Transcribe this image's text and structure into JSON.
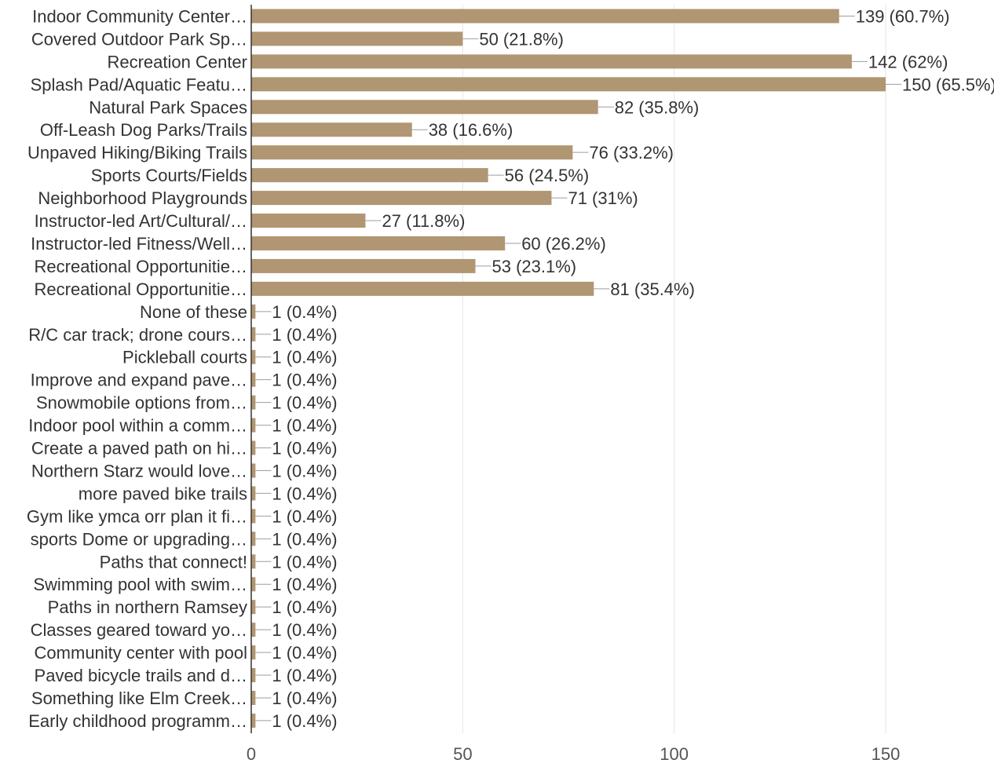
{
  "colors": {
    "bar": "#b09672",
    "axis": "#333333",
    "grid": "#e6e6e6",
    "leader": "#9e9e9e",
    "text": "#333333"
  },
  "chart_data": {
    "type": "bar",
    "orientation": "horizontal",
    "title": "",
    "xlabel": "",
    "ylabel": "",
    "xlim": [
      0,
      150
    ],
    "x_ticks": [
      0,
      50,
      100,
      150
    ],
    "grid": true,
    "categories": [
      "Indoor Community Center…",
      "Covered Outdoor Park Sp…",
      "Recreation Center",
      "Splash Pad/Aquatic Featu…",
      "Natural Park Spaces",
      "Off-Leash Dog Parks/Trails",
      "Unpaved Hiking/Biking Trails",
      "Sports Courts/Fields",
      "Neighborhood Playgrounds",
      "Instructor-led Art/Cultural/…",
      "Instructor-led Fitness/Well…",
      "Recreational Opportunitie…",
      "Recreational Opportunitie…",
      "None of these",
      "R/C car track; drone cours…",
      "Pickleball courts",
      "Improve and expand pave…",
      "Snowmobile options from…",
      "Indoor pool within a comm…",
      "Create a paved path on hi…",
      "Northern Starz would love…",
      "more paved bike trails",
      "Gym like ymca orr plan it fi…",
      "sports Dome or upgrading…",
      "Paths that connect!",
      "Swimming pool with swim…",
      "Paths in northern Ramsey",
      "Classes geared toward yo…",
      "Community center with pool",
      "Paved bicycle trails and d…",
      "Something like Elm Creek…",
      "Early childhood programm…"
    ],
    "values": [
      139,
      50,
      142,
      150,
      82,
      38,
      76,
      56,
      71,
      27,
      60,
      53,
      81,
      1,
      1,
      1,
      1,
      1,
      1,
      1,
      1,
      1,
      1,
      1,
      1,
      1,
      1,
      1,
      1,
      1,
      1,
      1
    ],
    "data_labels": [
      "139 (60.7%)",
      "50 (21.8%)",
      "142 (62%)",
      "150 (65.5%)",
      "82 (35.8%)",
      "38 (16.6%)",
      "76 (33.2%)",
      "56 (24.5%)",
      "71 (31%)",
      "27 (11.8%)",
      "60 (26.2%)",
      "53 (23.1%)",
      "81 (35.4%)",
      "1 (0.4%)",
      "1 (0.4%)",
      "1 (0.4%)",
      "1 (0.4%)",
      "1 (0.4%)",
      "1 (0.4%)",
      "1 (0.4%)",
      "1 (0.4%)",
      "1 (0.4%)",
      "1 (0.4%)",
      "1 (0.4%)",
      "1 (0.4%)",
      "1 (0.4%)",
      "1 (0.4%)",
      "1 (0.4%)",
      "1 (0.4%)",
      "1 (0.4%)",
      "1 (0.4%)",
      "1 (0.4%)"
    ]
  }
}
